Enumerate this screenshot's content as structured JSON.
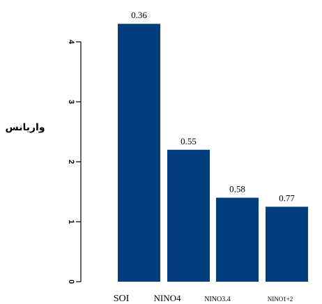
{
  "chart_data": {
    "type": "bar",
    "categories": [
      "SOI",
      "NINO4",
      "NINO3.4",
      "NINO1+2"
    ],
    "values": [
      4.3,
      2.2,
      1.4,
      1.25
    ],
    "data_labels": [
      "0.36",
      "0.55",
      "0.58",
      "0.77"
    ],
    "ylabel": "واریانس",
    "xlabel": "",
    "ylim": [
      0,
      4.5
    ],
    "yticks": [
      0,
      1,
      2,
      3,
      4
    ],
    "grid": false,
    "colors": {
      "bar": "#023e7d"
    }
  }
}
